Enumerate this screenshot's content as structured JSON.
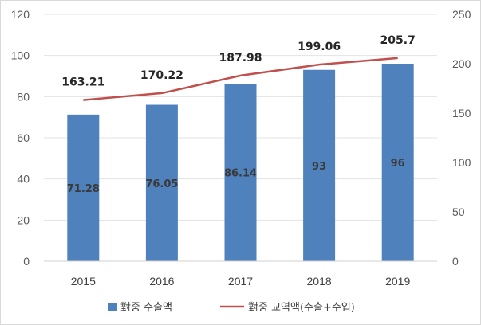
{
  "chart_data": {
    "type": "bar",
    "categories": [
      "2015",
      "2016",
      "2017",
      "2018",
      "2019"
    ],
    "series": [
      {
        "name": "對중 수출액",
        "type": "bar",
        "axis": "left",
        "color": "#4f81bd",
        "values": [
          71.28,
          76.05,
          86.14,
          93,
          96
        ],
        "labels": [
          "71.28",
          "76.05",
          "86.14",
          "93",
          "96"
        ]
      },
      {
        "name": "對중 교역액(수출+수입)",
        "type": "line",
        "axis": "right",
        "color": "#c0504d",
        "values": [
          163.21,
          170.22,
          187.98,
          199.06,
          205.7
        ],
        "labels": [
          "163.21",
          "170.22",
          "187.98",
          "199.06",
          "205.7"
        ]
      }
    ],
    "y_left": {
      "min": 0,
      "max": 120,
      "ticks": [
        0,
        20,
        40,
        60,
        80,
        100,
        120
      ]
    },
    "y_right": {
      "min": 0,
      "max": 250,
      "ticks": [
        0,
        50,
        100,
        150,
        200,
        250
      ]
    },
    "grid": true,
    "legend": "bottom"
  }
}
